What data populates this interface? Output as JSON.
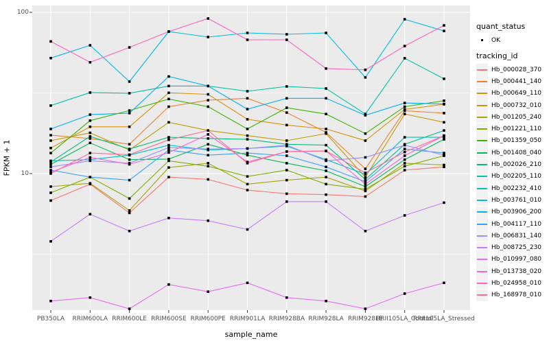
{
  "ui": {
    "legend": {
      "quant_status_title": "quant_status",
      "ok_label": "OK",
      "tracking_id_title": "tracking_id"
    }
  },
  "chart_data": {
    "type": "line",
    "title": "",
    "xlabel": "sample_name",
    "ylabel": "FPKM + 1",
    "y_scale": "log10",
    "ylim": [
      1.4,
      110
    ],
    "y_major_ticks": [
      10,
      100
    ],
    "y_minor_gridlines": [
      3.162,
      31.62
    ],
    "grid": true,
    "panel_bg": "#ebebeb",
    "gridline_color": "#ffffff",
    "point_color": "#000000",
    "legend_position": "right",
    "legend_titles": [
      "quant_status",
      "tracking_id"
    ],
    "quant_status_values": [
      "OK"
    ],
    "categories": [
      "PB350LA",
      "RRIM600LA",
      "RRIM600LE",
      "RRIM600SE",
      "RRIM600PE",
      "RRIM901LA",
      "RRIM928BA",
      "RRIM928LA",
      "RRIM928LE",
      "RRII105LA_Control",
      "RRII105LA_Stressed"
    ],
    "series": [
      {
        "name": "Hb_000028_370",
        "color": "#F8766D",
        "values": [
          6.8,
          8.6,
          5.7,
          9.5,
          9.2,
          7.9,
          7.5,
          7.4,
          7.2,
          10.5,
          11.0
        ]
      },
      {
        "name": "Hb_000441_140",
        "color": "#EA8331",
        "values": [
          17.3,
          16.5,
          15.2,
          26.0,
          28.5,
          29.3,
          23.9,
          18.0,
          10.7,
          24.5,
          23.7
        ]
      },
      {
        "name": "Hb_000649_110",
        "color": "#D89000",
        "values": [
          14.4,
          19.5,
          19.5,
          31.7,
          31.0,
          21.7,
          20.0,
          18.9,
          16.0,
          25.0,
          26.9
        ]
      },
      {
        "name": "Hb_000732_010",
        "color": "#C09B00",
        "values": [
          16.0,
          17.9,
          14.0,
          20.8,
          18.5,
          17.2,
          16.0,
          17.7,
          9.5,
          23.4,
          20.8
        ]
      },
      {
        "name": "Hb_001205_240",
        "color": "#A3A500",
        "values": [
          8.3,
          8.7,
          5.9,
          10.9,
          11.6,
          8.6,
          9.1,
          9.5,
          7.8,
          11.6,
          11.3
        ]
      },
      {
        "name": "Hb_001221_110",
        "color": "#7CAE00",
        "values": [
          7.6,
          9.5,
          7.0,
          12.0,
          11.1,
          9.6,
          10.5,
          8.6,
          8.0,
          11.1,
          12.9
        ]
      },
      {
        "name": "Hb_001359_050",
        "color": "#39B600",
        "values": [
          13.4,
          21.3,
          24.6,
          29.0,
          26.0,
          18.9,
          25.6,
          23.4,
          17.7,
          26.0,
          28.3
        ]
      },
      {
        "name": "Hb_001408_040",
        "color": "#00BB4E",
        "values": [
          11.4,
          15.5,
          12.2,
          12.3,
          15.2,
          13.0,
          11.6,
          10.4,
          8.3,
          12.2,
          16.3
        ]
      },
      {
        "name": "Hb_002026_210",
        "color": "#00BF7D",
        "values": [
          11.8,
          17.0,
          14.2,
          16.8,
          16.5,
          16.3,
          15.2,
          15.0,
          9.2,
          15.2,
          18.5
        ]
      },
      {
        "name": "Hb_002205_110",
        "color": "#00C1A3",
        "values": [
          26.4,
          31.8,
          31.5,
          34.9,
          34.9,
          32.4,
          34.7,
          33.7,
          23.4,
          51.9,
          38.7
        ]
      },
      {
        "name": "Hb_002232_410",
        "color": "#00BFC4",
        "values": [
          12.0,
          12.2,
          13.0,
          15.0,
          14.0,
          14.3,
          14.8,
          12.2,
          9.9,
          16.8,
          16.8
        ]
      },
      {
        "name": "Hb_003761_010",
        "color": "#00BAE0",
        "values": [
          52.0,
          62.5,
          37.2,
          76.0,
          70.3,
          74.5,
          73.1,
          74.5,
          39.5,
          90.6,
          76.7
        ]
      },
      {
        "name": "Hb_003906_200",
        "color": "#00B0F6",
        "values": [
          18.9,
          23.2,
          23.7,
          40.0,
          34.9,
          25.1,
          29.3,
          29.3,
          23.0,
          27.4,
          27.0
        ]
      },
      {
        "name": "Hb_004117_110",
        "color": "#35A2FF",
        "values": [
          10.5,
          9.5,
          9.1,
          14.0,
          13.0,
          13.4,
          12.9,
          11.0,
          8.9,
          14.2,
          13.4
        ]
      },
      {
        "name": "Hb_006831_140",
        "color": "#9590FF",
        "values": [
          11.0,
          12.0,
          11.6,
          14.5,
          14.2,
          14.3,
          15.0,
          12.0,
          12.6,
          15.0,
          13.0
        ]
      },
      {
        "name": "Hb_008725_230",
        "color": "#C77CFF",
        "values": [
          3.8,
          5.6,
          4.4,
          5.3,
          5.1,
          4.5,
          6.7,
          6.7,
          4.4,
          5.5,
          6.6
        ]
      },
      {
        "name": "Hb_010997_080",
        "color": "#E76BF3",
        "values": [
          1.62,
          1.7,
          1.45,
          2.05,
          1.85,
          2.1,
          1.7,
          1.62,
          1.45,
          1.8,
          2.1
        ]
      },
      {
        "name": "Hb_013738_020",
        "color": "#FA62DB",
        "values": [
          10.2,
          12.6,
          11.4,
          13.5,
          17.5,
          11.8,
          13.7,
          13.8,
          8.6,
          12.9,
          17.2
        ]
      },
      {
        "name": "Hb_024958_010",
        "color": "#FF62BC",
        "values": [
          66.0,
          49.0,
          60.6,
          76.0,
          91.6,
          67.6,
          67.6,
          44.8,
          44.0,
          61.8,
          83.0
        ]
      },
      {
        "name": "Hb_168978_010",
        "color": "#FF6A98",
        "values": [
          10.0,
          13.4,
          13.1,
          16.2,
          18.5,
          11.6,
          13.7,
          13.8,
          10.1,
          13.6,
          17.2
        ]
      }
    ]
  }
}
